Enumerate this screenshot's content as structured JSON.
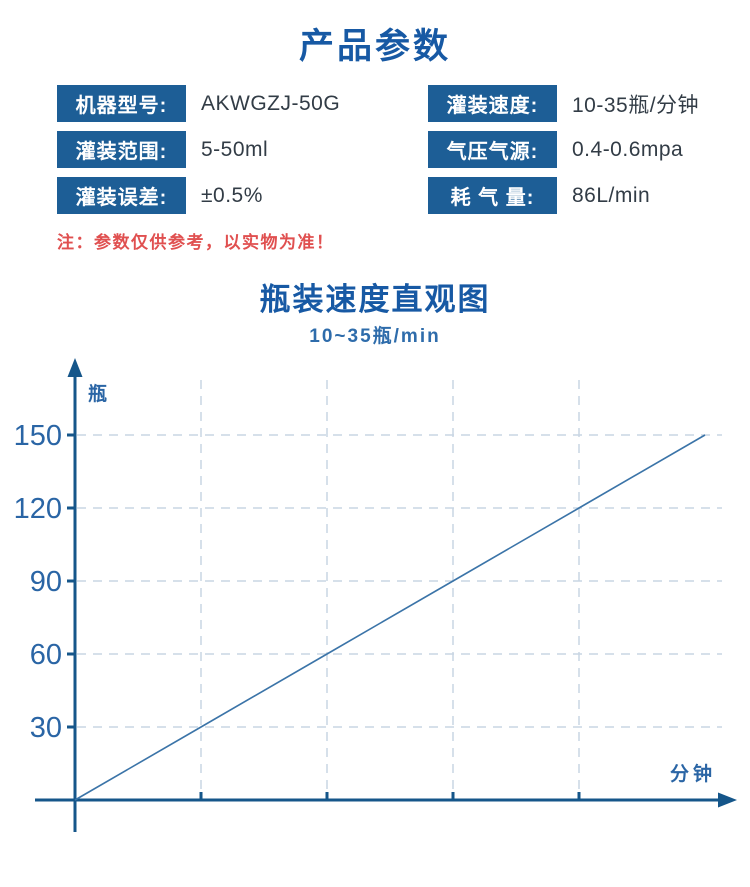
{
  "page": {
    "title": "产品参数",
    "note": "注：参数仅供参考，以实物为准！"
  },
  "params": [
    {
      "label": "机器型号:",
      "value": "AKWGZJ-50G"
    },
    {
      "label": "灌装速度:",
      "value": "10-35瓶/分钟"
    },
    {
      "label": "灌装范围:",
      "value": "5-50ml"
    },
    {
      "label": "气压气源:",
      "value": "0.4-0.6mpa"
    },
    {
      "label": "灌装误差:",
      "value": "±0.5%"
    },
    {
      "label": "耗 气 量:",
      "value": "86L/min"
    }
  ],
  "colors": {
    "label_box_blue": "#1d5e96",
    "title_blue": "#1759a4",
    "subtitle_blue": "#2e6cab",
    "note_red": "#e05050",
    "value_text": "#323c46",
    "axis_blue": "#15568a",
    "tick_label_blue": "#2a65a5",
    "grid_gray_blue": "#c9d6e3",
    "data_line_blue": "#3b74a8"
  },
  "chart_data": {
    "type": "line",
    "title": "瓶装速度直观图",
    "subtitle": "10~35瓶/min",
    "xlabel": "分钟",
    "ylabel": "瓶",
    "yticks": [
      30,
      60,
      90,
      120,
      150
    ],
    "x_ticks": [
      1,
      2,
      3,
      4
    ],
    "xlim": [
      0,
      5.2
    ],
    "ylim": [
      0,
      165
    ],
    "grid": "dashed",
    "legend": "none",
    "series": [
      {
        "x": [
          0,
          1,
          2,
          3,
          4,
          5
        ],
        "y": [
          0,
          30,
          60,
          90,
          120,
          150
        ]
      }
    ]
  }
}
